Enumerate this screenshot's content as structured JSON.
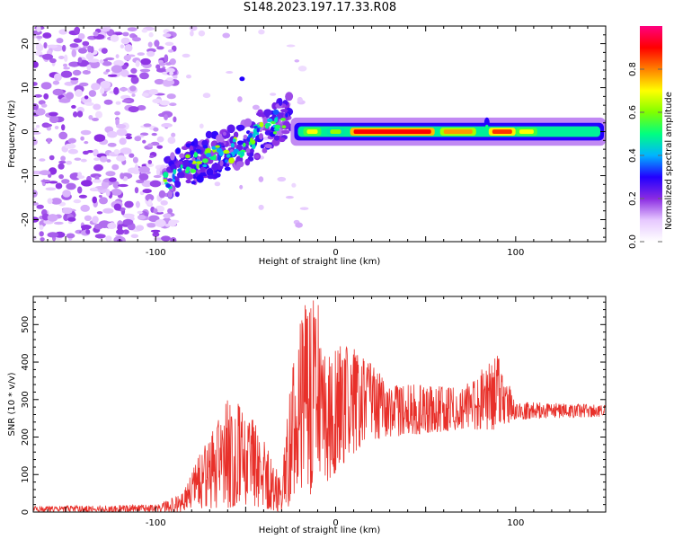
{
  "title": "S148.2023.197.17.33.R08",
  "chart_data": [
    {
      "type": "heatmap",
      "xlabel": "Height of straight line (km)",
      "ylabel": "Frequency (Hz)",
      "xlim": [
        -168,
        150
      ],
      "ylim": [
        -25,
        24
      ],
      "xticks": [
        -100,
        0,
        100
      ],
      "yticks": [
        -20,
        -10,
        0,
        10,
        20
      ],
      "colorbar": {
        "label": "Normalized spectral amplitude",
        "range": [
          0.0,
          1.0
        ],
        "ticks": [
          "0.0",
          "0.2",
          "0.4",
          "0.6",
          "0.8"
        ],
        "tick_values": [
          0.0,
          0.2,
          0.4,
          0.6,
          0.8
        ],
        "colors": [
          "#ffffff",
          "#e6c8ff",
          "#8a2be2",
          "#2200ff",
          "#00b4ff",
          "#00ff80",
          "#80ff00",
          "#ffff00",
          "#ff8000",
          "#ff0000",
          "#ff0080"
        ]
      },
      "features": {
        "noise_region_x": [
          -168,
          -95
        ],
        "ramp": [
          {
            "x": -95,
            "y": -11
          },
          {
            "x": -75,
            "y": -6
          },
          {
            "x": -55,
            "y": -4
          },
          {
            "x": -45,
            "y": -1
          },
          {
            "x": -25,
            "y": 4
          }
        ],
        "line_frequency_hz": 0,
        "line_x_range": [
          -25,
          150
        ],
        "peak_amplitude": 1.0
      }
    },
    {
      "type": "line",
      "xlabel": "Height of straight line (km)",
      "ylabel": "SNR (10 * v/v)",
      "xlim": [
        -168,
        150
      ],
      "ylim": [
        0,
        575
      ],
      "xticks": [
        -100,
        0,
        100
      ],
      "yticks": [
        0,
        100,
        200,
        300,
        400,
        500
      ],
      "color": "#e8302a",
      "envelope": [
        {
          "x": -168,
          "lo": 0,
          "hi": 15
        },
        {
          "x": -100,
          "lo": 0,
          "hi": 20
        },
        {
          "x": -85,
          "lo": 0,
          "hi": 50
        },
        {
          "x": -75,
          "lo": 10,
          "hi": 160
        },
        {
          "x": -60,
          "lo": 10,
          "hi": 300
        },
        {
          "x": -50,
          "lo": 20,
          "hi": 280
        },
        {
          "x": -40,
          "lo": 10,
          "hi": 200
        },
        {
          "x": -30,
          "lo": 0,
          "hi": 90
        },
        {
          "x": -25,
          "lo": 20,
          "hi": 350
        },
        {
          "x": -18,
          "lo": 30,
          "hi": 560
        },
        {
          "x": -10,
          "lo": 60,
          "hi": 570
        },
        {
          "x": -5,
          "lo": 80,
          "hi": 420
        },
        {
          "x": 5,
          "lo": 130,
          "hi": 450
        },
        {
          "x": 15,
          "lo": 180,
          "hi": 420
        },
        {
          "x": 30,
          "lo": 200,
          "hi": 340
        },
        {
          "x": 50,
          "lo": 210,
          "hi": 340
        },
        {
          "x": 70,
          "lo": 220,
          "hi": 330
        },
        {
          "x": 90,
          "lo": 220,
          "hi": 420
        },
        {
          "x": 100,
          "lo": 245,
          "hi": 295
        },
        {
          "x": 150,
          "lo": 255,
          "hi": 285
        }
      ]
    }
  ]
}
